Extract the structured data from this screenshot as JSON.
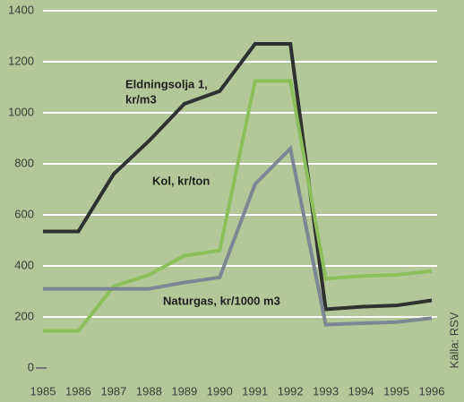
{
  "chart_data": {
    "type": "line",
    "x": [
      1985,
      1986,
      1987,
      1988,
      1989,
      1990,
      1991,
      1992,
      1993,
      1994,
      1995,
      1996
    ],
    "xlim": [
      1985,
      1996
    ],
    "xticks": [
      1985,
      1986,
      1987,
      1988,
      1989,
      1990,
      1991,
      1992,
      1993,
      1994,
      1995,
      1996
    ],
    "ylim": [
      0,
      1400
    ],
    "yticks": [
      0,
      200,
      400,
      600,
      800,
      1000,
      1200,
      1400
    ],
    "grid": true,
    "series": [
      {
        "name": [
          "Eldningsolja 1,",
          "kr/m3"
        ],
        "color": "#2e312f",
        "values": [
          535,
          535,
          760,
          890,
          1035,
          1085,
          1270,
          1270,
          230,
          240,
          245,
          265
        ]
      },
      {
        "name": [
          "Kol, kr/ton"
        ],
        "color": "#8cbf5a",
        "values": [
          145,
          145,
          320,
          365,
          440,
          460,
          1125,
          1125,
          350,
          360,
          365,
          380
        ]
      },
      {
        "name": [
          "Naturgas, kr/1000 m3"
        ],
        "color": "#7b8894",
        "values": [
          310,
          310,
          310,
          310,
          335,
          355,
          720,
          860,
          170,
          175,
          180,
          195
        ]
      }
    ],
    "source": "Källa: RSV"
  }
}
